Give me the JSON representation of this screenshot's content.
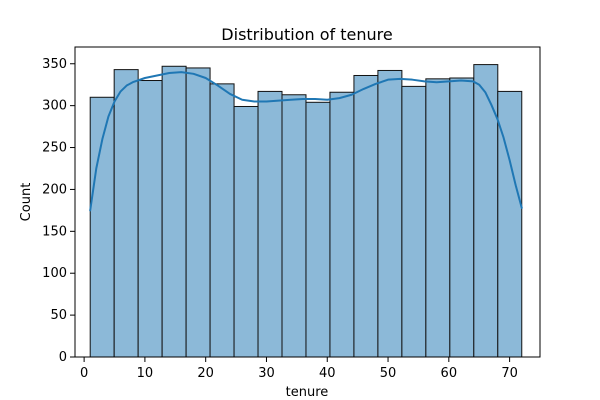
{
  "chart_data": {
    "type": "bar",
    "title": "Distribution of tenure",
    "xlabel": "tenure",
    "ylabel": "Count",
    "xlim": [
      -1.5,
      75.0
    ],
    "ylim": [
      0,
      370
    ],
    "x_ticks": [
      0,
      10,
      20,
      30,
      40,
      50,
      60,
      70
    ],
    "y_ticks": [
      0,
      50,
      100,
      150,
      200,
      250,
      300,
      350
    ],
    "grid": false,
    "legend": "none",
    "bins": {
      "edges": [
        1,
        4.944,
        8.889,
        12.833,
        16.778,
        20.722,
        24.667,
        28.611,
        32.556,
        36.5,
        40.444,
        44.389,
        48.333,
        52.278,
        56.222,
        60.167,
        64.111,
        68.056,
        72
      ],
      "values": [
        310,
        343,
        330,
        347,
        345,
        326,
        299,
        317,
        313,
        304,
        316,
        336,
        342,
        323,
        332,
        333,
        349,
        317
      ]
    },
    "kde": {
      "x": [
        1,
        2,
        3,
        4,
        5,
        6,
        7,
        8,
        10,
        12,
        14,
        16,
        18,
        20,
        22,
        24,
        26,
        28,
        30,
        32,
        34,
        36,
        38,
        40,
        42,
        44,
        46,
        48,
        50,
        52,
        54,
        56,
        58,
        60,
        62,
        64,
        65,
        66,
        67,
        68,
        69,
        70,
        71,
        72
      ],
      "y": [
        175,
        225,
        260,
        287,
        305,
        317,
        324,
        328,
        333,
        336,
        339,
        340,
        338,
        333,
        324,
        314,
        307,
        305,
        305,
        306,
        307,
        308,
        308,
        307,
        309,
        313,
        320,
        326,
        331,
        332,
        331,
        329,
        328,
        329,
        330,
        329,
        325,
        316,
        301,
        284,
        262,
        235,
        205,
        178
      ]
    },
    "colors": {
      "bar_fill": "#8cb9d8",
      "bar_edge": "#111111",
      "kde_line": "#1f77b4",
      "axes": "#000000"
    }
  }
}
